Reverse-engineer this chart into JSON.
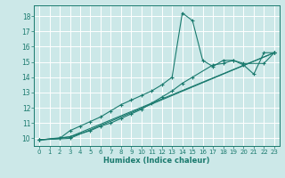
{
  "xlabel": "Humidex (Indice chaleur)",
  "bg_color": "#cce8e8",
  "grid_color": "#ffffff",
  "line_color": "#1a7a6e",
  "xlim": [
    -0.5,
    23.5
  ],
  "ylim": [
    9.5,
    18.7
  ],
  "xticks": [
    0,
    1,
    2,
    3,
    4,
    5,
    6,
    7,
    8,
    9,
    10,
    11,
    12,
    13,
    14,
    15,
    16,
    17,
    18,
    19,
    20,
    21,
    22,
    23
  ],
  "yticks": [
    10,
    11,
    12,
    13,
    14,
    15,
    16,
    17,
    18
  ],
  "lines": [
    {
      "x": [
        0,
        2,
        3,
        4,
        5,
        6,
        7,
        8,
        9,
        10,
        11,
        12,
        13,
        14,
        15,
        16,
        17,
        18,
        19,
        20,
        21,
        22,
        23
      ],
      "y": [
        9.9,
        10.0,
        10.5,
        10.8,
        11.1,
        11.4,
        11.8,
        12.2,
        12.5,
        12.8,
        13.1,
        13.5,
        14.0,
        18.2,
        17.7,
        15.1,
        14.7,
        15.1,
        15.1,
        14.8,
        14.2,
        15.6,
        15.6
      ]
    },
    {
      "x": [
        0,
        2,
        3,
        5,
        6,
        7,
        8,
        9,
        10,
        11,
        12,
        13,
        14,
        15,
        17,
        18,
        19,
        20,
        22,
        23
      ],
      "y": [
        9.9,
        10.0,
        10.1,
        10.5,
        10.8,
        11.0,
        11.3,
        11.6,
        11.9,
        12.3,
        12.7,
        13.1,
        13.6,
        14.0,
        14.8,
        14.9,
        15.1,
        14.9,
        14.9,
        15.6
      ]
    },
    {
      "x": [
        0,
        3,
        23
      ],
      "y": [
        9.9,
        10.0,
        15.6
      ]
    },
    {
      "x": [
        0,
        3,
        23
      ],
      "y": [
        9.9,
        10.1,
        15.6
      ]
    }
  ]
}
